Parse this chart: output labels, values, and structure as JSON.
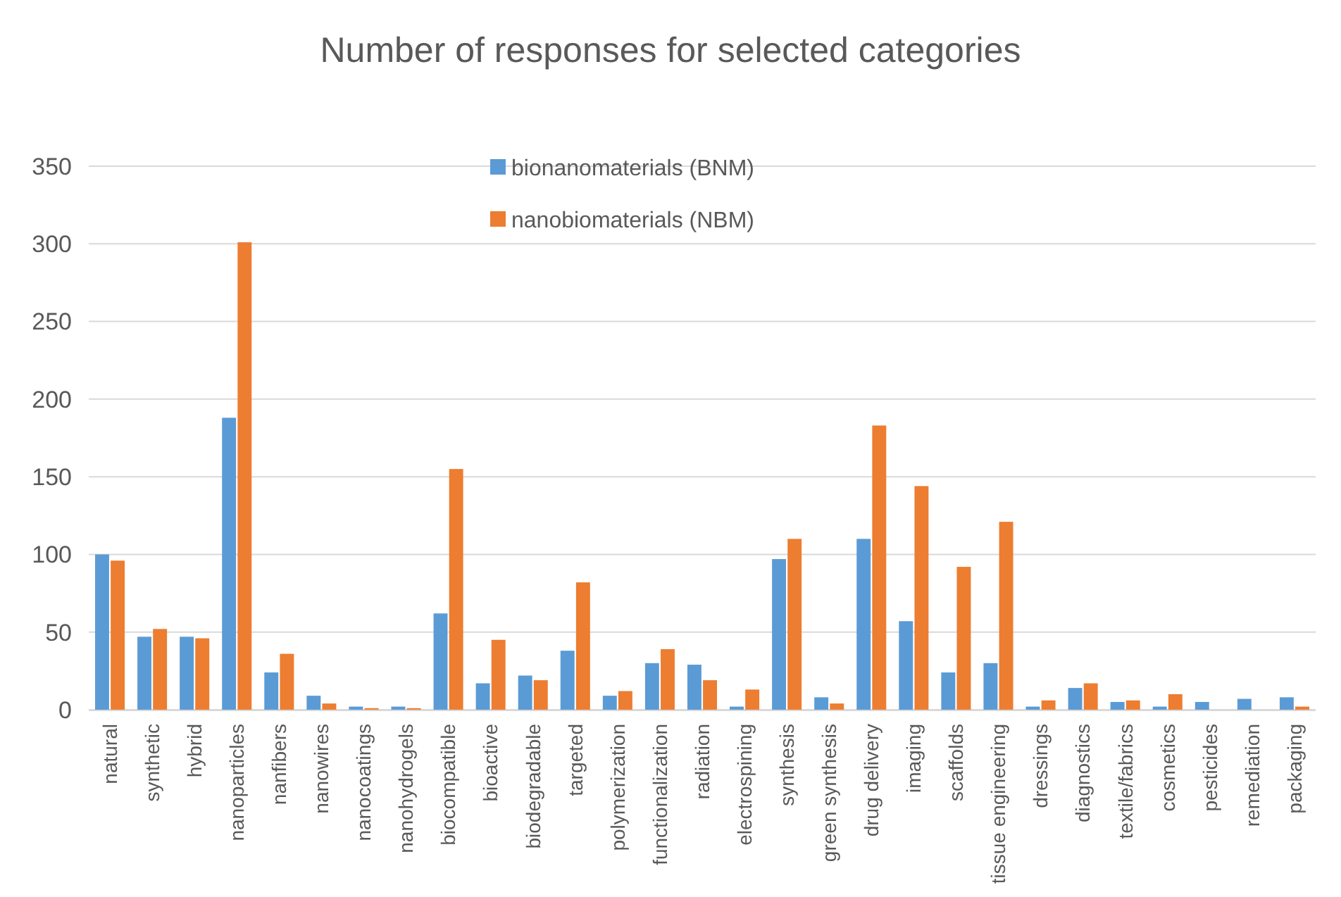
{
  "chart_data": {
    "type": "bar",
    "title": "Number of responses for selected categories",
    "categories": [
      "natural",
      "synthetic",
      "hybrid",
      "nanoparticles",
      "nanfibers",
      "nanowires",
      "nanocoatings",
      "nanohydrogels",
      "biocompatible",
      "bioactive",
      "biodegradable",
      "targeted",
      "polymerization",
      "functionalization",
      "radiation",
      "electrospining",
      "synthesis",
      "green synthesis",
      "drug delivery",
      "imaging",
      "scaffolds",
      "tissue engineering",
      "dressings",
      "diagnostics",
      "textile/fabrics",
      "cosmetics",
      "pesticides",
      "remediation",
      "packaging"
    ],
    "series": [
      {
        "name": "bionanomaterials (BNM)",
        "color": "#5b9bd5",
        "values": [
          100,
          47,
          47,
          188,
          24,
          9,
          2,
          2,
          62,
          17,
          22,
          38,
          9,
          30,
          29,
          2,
          97,
          8,
          110,
          57,
          24,
          30,
          2,
          14,
          5,
          2,
          5,
          7,
          8
        ]
      },
      {
        "name": "nanobiomaterials (NBM)",
        "color": "#ed7d31",
        "values": [
          96,
          52,
          46,
          301,
          36,
          4,
          1,
          1,
          155,
          45,
          19,
          82,
          12,
          39,
          19,
          13,
          110,
          4,
          183,
          144,
          92,
          121,
          6,
          17,
          6,
          10,
          0,
          0,
          2
        ]
      }
    ],
    "ylim": [
      0,
      350
    ],
    "yticks": [
      0,
      50,
      100,
      150,
      200,
      250,
      300,
      350
    ],
    "grid": "y",
    "legend": "top"
  }
}
